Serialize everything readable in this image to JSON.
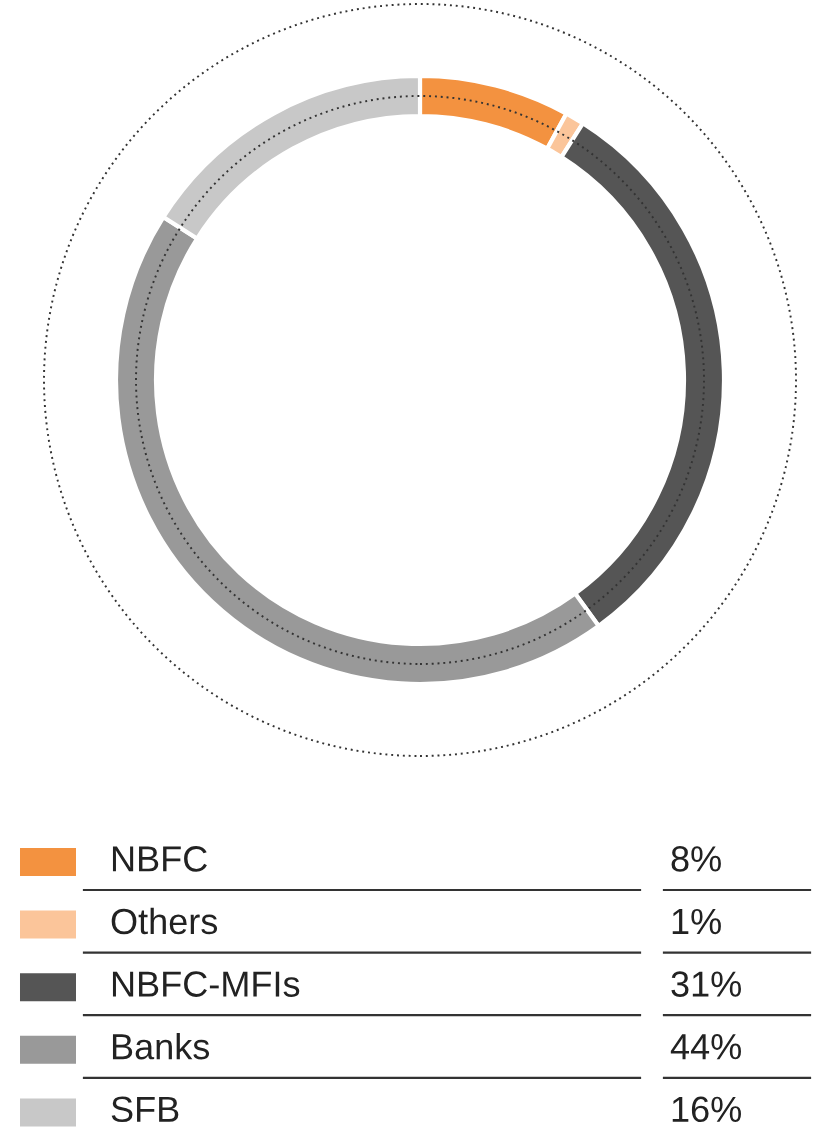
{
  "chart_data": {
    "type": "donut",
    "categories": [
      "NBFC",
      "Others",
      "NBFC-MFIs",
      "Banks",
      "SFB"
    ],
    "values": [
      8,
      1,
      31,
      44,
      16
    ],
    "colors": [
      "#f39240",
      "#fbc59a",
      "#555555",
      "#999999",
      "#c8c8c8"
    ],
    "value_labels": [
      "8%",
      "1%",
      "31%",
      "44%",
      "16%"
    ],
    "legend": "bottom"
  }
}
